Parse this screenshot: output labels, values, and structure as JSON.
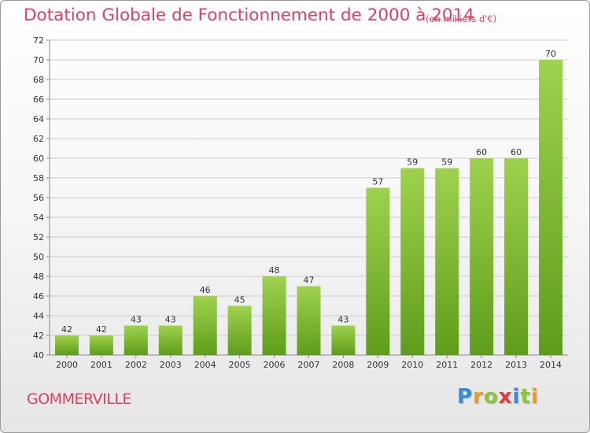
{
  "title": "Dotation Globale de Fonctionnement de 2000 à 2014",
  "unit_note": "(en milliers d'€)",
  "commune": "GOMMERVILLE",
  "logo_text": "Proxiti",
  "colors": {
    "title": "#e0405e",
    "bar_top": "#9fd24e",
    "bar_bottom": "#5e9d1a",
    "grid": "#cccccc"
  },
  "chart_data": {
    "type": "bar",
    "title": "Dotation Globale de Fonctionnement de 2000 à 2014",
    "subtitle": "(en milliers d'€)",
    "categories": [
      "2000",
      "2001",
      "2002",
      "2003",
      "2004",
      "2005",
      "2006",
      "2007",
      "2008",
      "2009",
      "2010",
      "2011",
      "2012",
      "2013",
      "2014"
    ],
    "values": [
      42,
      42,
      43,
      43,
      46,
      45,
      48,
      47,
      43,
      57,
      59,
      59,
      60,
      60,
      70
    ],
    "ylim": [
      40,
      72
    ],
    "yticks": [
      40,
      42,
      44,
      46,
      48,
      50,
      52,
      54,
      56,
      58,
      60,
      62,
      64,
      66,
      68,
      70,
      72
    ],
    "grid": true,
    "legend": "none"
  }
}
